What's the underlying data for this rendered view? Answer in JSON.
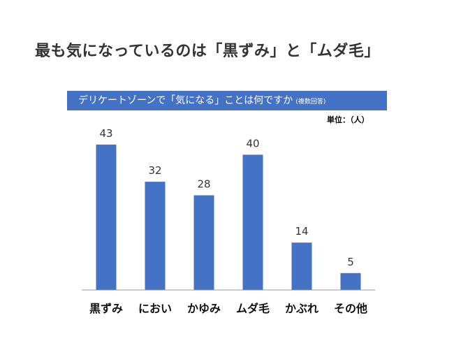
{
  "slide": {
    "title": "最も気になっているのは「黒ずみ」と「ムダ毛」"
  },
  "chart_data": {
    "type": "bar",
    "title": "デリケートゾーンで「気になる」ことは何ですか",
    "subtitle": "(複数回答)",
    "unit": "単位：（人）",
    "categories": [
      "黒ずみ",
      "におい",
      "かゆみ",
      "ムダ毛",
      "かぶれ",
      "その他"
    ],
    "values": [
      43,
      32,
      28,
      40,
      14,
      5
    ],
    "ylim": [
      0,
      45
    ],
    "grid": false,
    "legend": "none",
    "colors": {
      "bar": "#4472c4",
      "banner": "#4472c4",
      "axis": "#999999"
    }
  }
}
